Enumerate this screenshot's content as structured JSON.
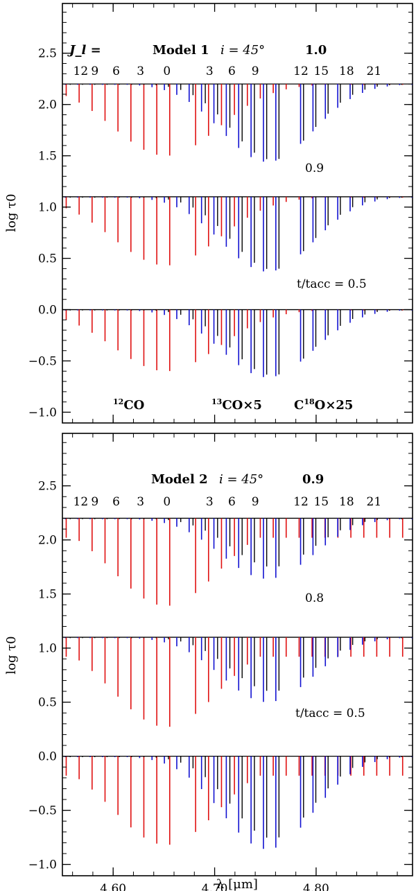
{
  "colors": {
    "co12": "#e01010",
    "co13": "#1010d0",
    "c18o": "#000000",
    "axis": "#000000"
  },
  "chart_data": [
    {
      "type": "line",
      "panel": "top",
      "model_label": "Model 1",
      "incl_label": "i = 45°",
      "ylabel": "log τ0",
      "xlabel": "",
      "xlim": [
        4.55,
        4.895
      ],
      "ylim": [
        -1.1,
        3.0
      ],
      "yticks": [
        "2.5",
        "2.0",
        "1.5",
        "1.0",
        "0.5",
        "0.0",
        "−0.5",
        "−1.0"
      ],
      "ytick_values": [
        2.5,
        2.0,
        1.5,
        1.0,
        0.5,
        0.0,
        -0.5,
        -1.0
      ],
      "xticks": [
        "",
        "",
        ""
      ],
      "xtick_values": [
        4.6,
        4.7,
        4.8
      ],
      "jlabel_prefix": "J_l =",
      "j_levels": [
        "12",
        "9",
        "6",
        "3",
        "0",
        "3",
        "6",
        "9",
        "12",
        "15",
        "18",
        "21"
      ],
      "j_level_x": [
        4.568,
        4.582,
        4.603,
        4.627,
        4.653,
        4.695,
        4.717,
        4.74,
        4.785,
        4.805,
        4.83,
        4.857
      ],
      "legend": [
        "12CO",
        "13CO×5",
        "C18O×25"
      ],
      "legend_parts": {
        "co12_sup": "12",
        "co12": "CO",
        "co13_sup": "13",
        "co13": "CO×5",
        "c18o_pre": "C",
        "c18o_sup": "18",
        "c18o": "O×25"
      },
      "series": [
        {
          "name": "t/tacc = 1.0",
          "label": "1.0",
          "offset": 2.2,
          "co12_depth": 0.7,
          "co13_depth": 0.76,
          "c18o_depth": 0.74
        },
        {
          "name": "t/tacc = 0.9",
          "label": "0.9",
          "offset": 1.1,
          "co12_depth": 0.67,
          "co13_depth": 0.73,
          "c18o_depth": 0.71
        },
        {
          "name": "t/tacc = 0.5",
          "label": "t/tacc = 0.5",
          "offset": 0.0,
          "co12_depth": 0.6,
          "co13_depth": 0.66,
          "c18o_depth": 0.64
        }
      ]
    },
    {
      "type": "line",
      "panel": "bottom",
      "model_label": "Model 2",
      "incl_label": "i = 45°",
      "ylabel": "log τ0",
      "xlabel": "λ [μm]",
      "xlim": [
        4.55,
        4.895
      ],
      "ylim": [
        -1.1,
        3.0
      ],
      "yticks": [
        "2.5",
        "2.0",
        "1.5",
        "1.0",
        "0.5",
        "0.0",
        "−0.5",
        "−1.0"
      ],
      "ytick_values": [
        2.5,
        2.0,
        1.5,
        1.0,
        0.5,
        0.0,
        -0.5,
        -1.0
      ],
      "xticks": [
        "4.60",
        "4.70",
        "4.80"
      ],
      "xtick_values": [
        4.6,
        4.7,
        4.8
      ],
      "j_levels": [
        "12",
        "9",
        "6",
        "3",
        "0",
        "3",
        "6",
        "9",
        "12",
        "15",
        "18",
        "21"
      ],
      "j_level_x": [
        4.568,
        4.582,
        4.603,
        4.627,
        4.653,
        4.695,
        4.717,
        4.74,
        4.785,
        4.805,
        4.83,
        4.857
      ],
      "series": [
        {
          "name": "t/tacc = 0.9",
          "label": "0.9",
          "offset": 2.2,
          "co12_depth": 0.81,
          "co13_depth": 0.56,
          "c18o_depth": 0.45
        },
        {
          "name": "t/tacc = 0.8",
          "label": "0.8",
          "offset": 1.1,
          "co12_depth": 0.83,
          "co13_depth": 0.6,
          "c18o_depth": 0.5
        },
        {
          "name": "t/tacc = 0.5",
          "label": "t/tacc = 0.5",
          "offset": 0.0,
          "co12_depth": 0.82,
          "co13_depth": 0.86,
          "c18o_depth": 0.76
        }
      ]
    }
  ]
}
